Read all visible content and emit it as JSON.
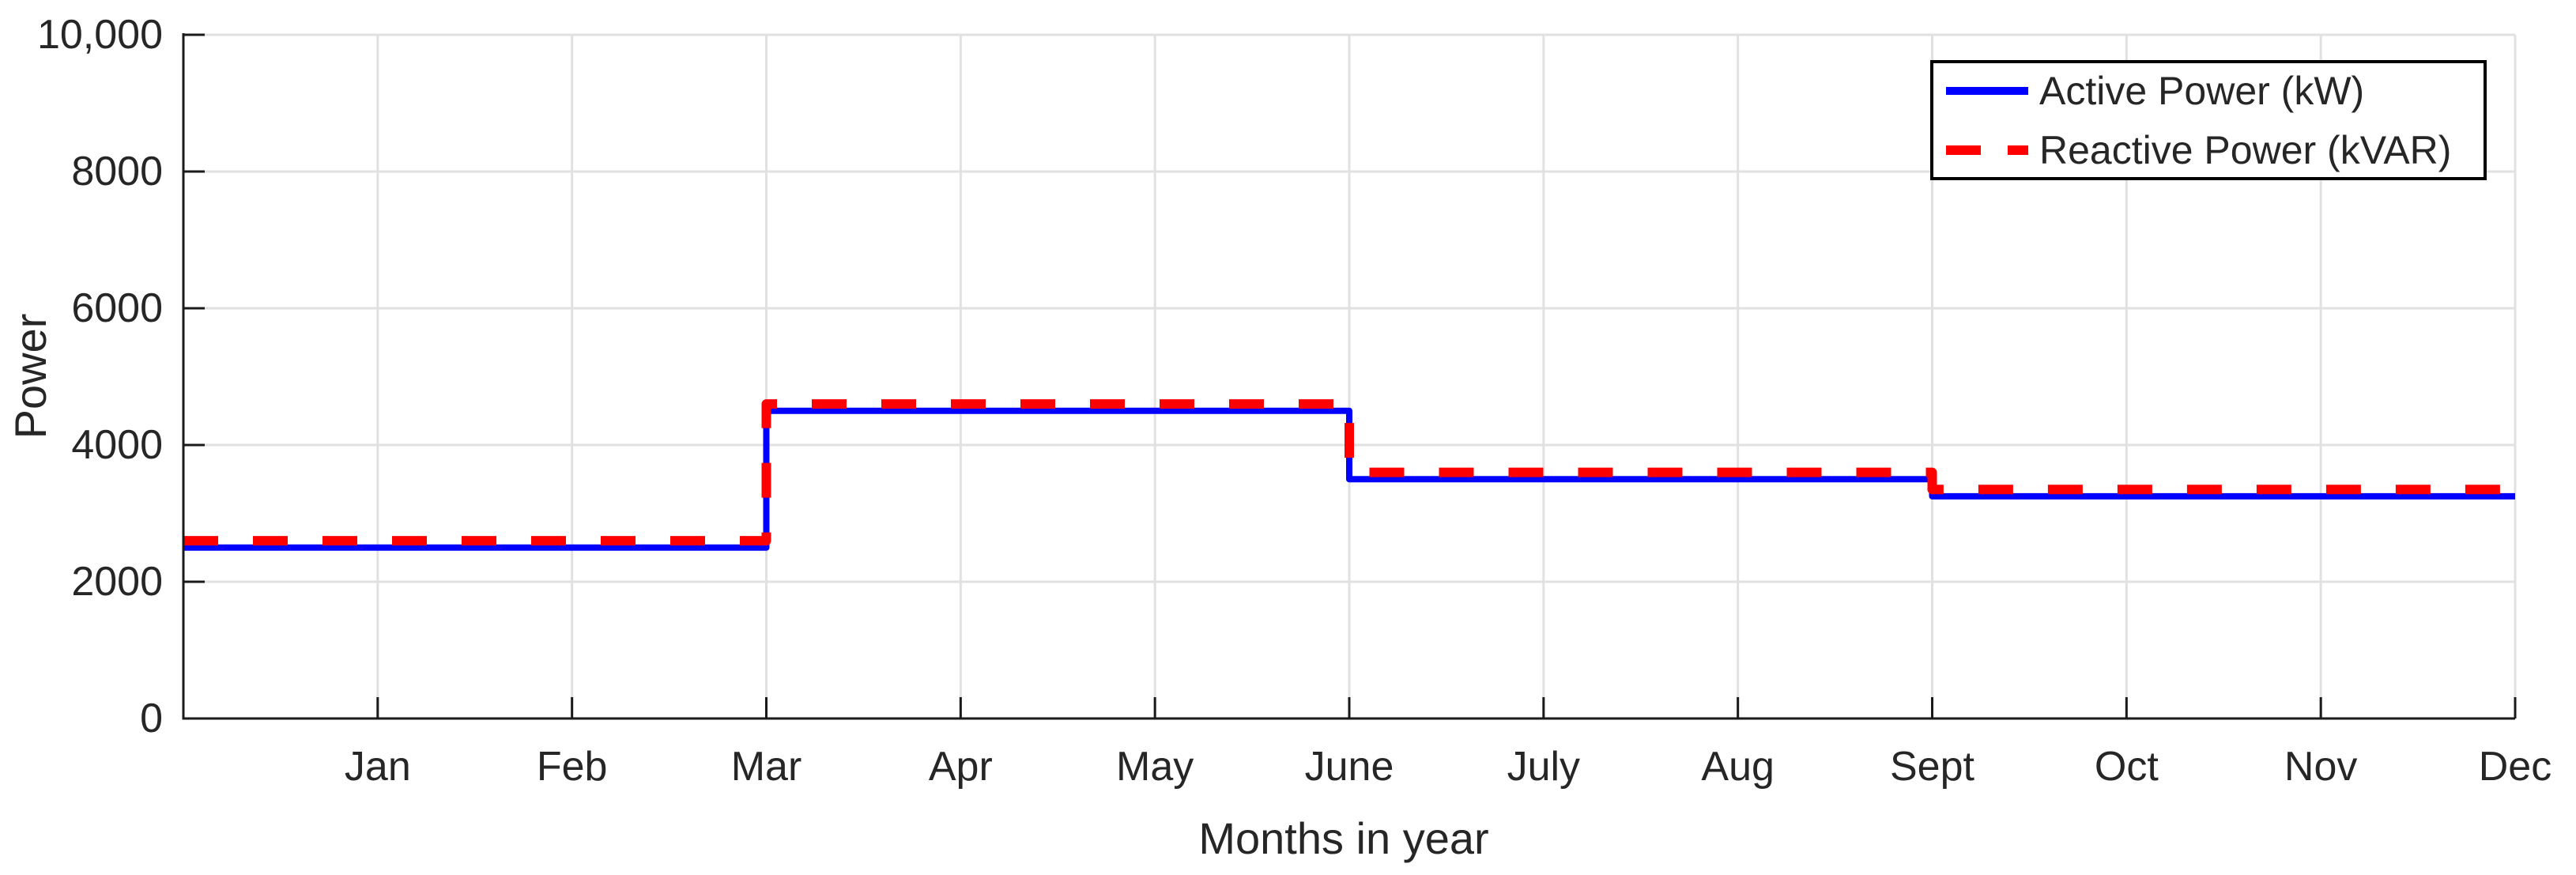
{
  "chart_data": {
    "type": "line",
    "subtype": "step",
    "title": "",
    "xlabel": "Months in year",
    "ylabel": "Power",
    "x_tick_labels": [
      "Jan",
      "Feb",
      "Mar",
      "Apr",
      "May",
      "June",
      "July",
      "Aug",
      "Sept",
      "Oct",
      "Nov",
      "Dec"
    ],
    "y_ticks": [
      {
        "value": 0,
        "label": "0"
      },
      {
        "value": 2000,
        "label": "2000"
      },
      {
        "value": 4000,
        "label": "4000"
      },
      {
        "value": 6000,
        "label": "6000"
      },
      {
        "value": 8000,
        "label": "8000"
      },
      {
        "value": 10000,
        "label": "10,000"
      }
    ],
    "ylim": [
      0,
      10000
    ],
    "xlim_months": [
      0,
      12
    ],
    "grid": true,
    "legend_position": "northeast",
    "step_breakpoints_months": [
      0,
      3,
      6,
      9,
      12
    ],
    "series": [
      {
        "name": "Active Power (kW)",
        "color": "#0000FF",
        "line_style": "solid",
        "segment_values": [
          2500,
          4500,
          3500,
          3250
        ]
      },
      {
        "name": "Reactive Power (kVAR)",
        "color": "#FF0000",
        "line_style": "dashed",
        "segment_values": [
          2600,
          4600,
          3600,
          3350
        ]
      }
    ]
  },
  "colors": {
    "background": "#FFFFFF",
    "grid": "#E1E1E1",
    "axis": "#1A1A1A",
    "text": "#262626",
    "legend_border": "#000000",
    "legend_background": "#FFFFFF"
  }
}
